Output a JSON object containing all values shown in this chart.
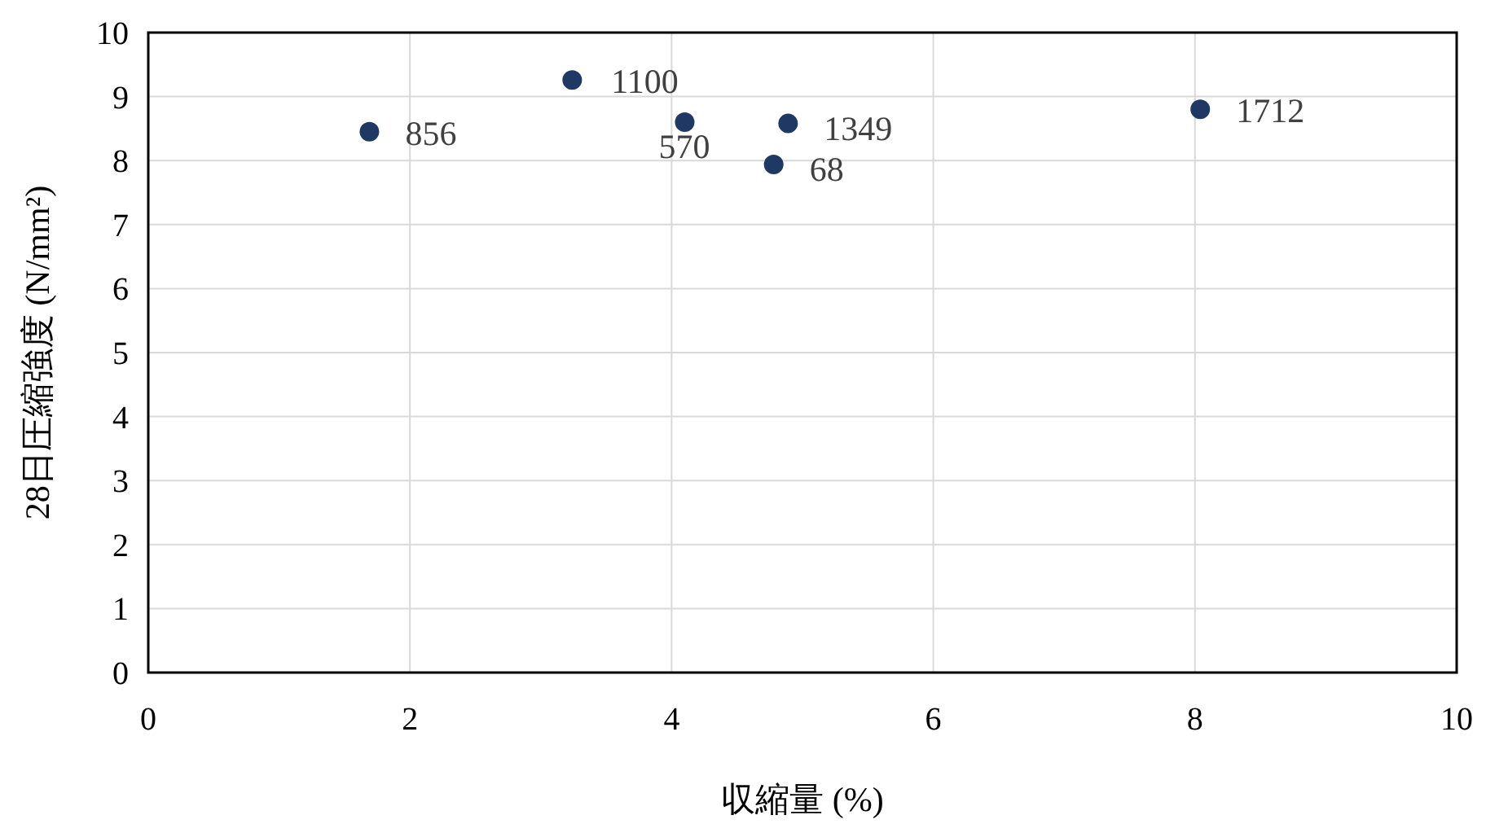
{
  "chart_data": {
    "type": "scatter",
    "xlabel": "収縮量 (%)",
    "ylabel": "28日圧縮強度 (N/mm²)",
    "x": [
      1.69,
      3.24,
      4.1,
      4.89,
      4.78,
      8.04
    ],
    "values": [
      8.45,
      9.26,
      8.6,
      8.58,
      7.94,
      8.8
    ],
    "color": "#203864",
    "marker": "circle",
    "grid": true,
    "xlim": [
      0,
      10
    ],
    "xticks": [
      0,
      2,
      4,
      6,
      8,
      10
    ],
    "ylim": [
      0,
      10
    ],
    "yticks": [
      0,
      1,
      2,
      3,
      4,
      5,
      6,
      7,
      8,
      9,
      10
    ],
    "annotations": [
      {
        "text": "856",
        "x": 1.69,
        "y": 8.45
      },
      {
        "text": "1100",
        "x": 3.24,
        "y": 9.26
      },
      {
        "text": "570",
        "x": 4.1,
        "y": 8.6
      },
      {
        "text": "1349",
        "x": 4.89,
        "y": 8.58
      },
      {
        "text": "68",
        "x": 4.78,
        "y": 7.94
      },
      {
        "text": "1712",
        "x": 8.04,
        "y": 8.8
      }
    ]
  }
}
